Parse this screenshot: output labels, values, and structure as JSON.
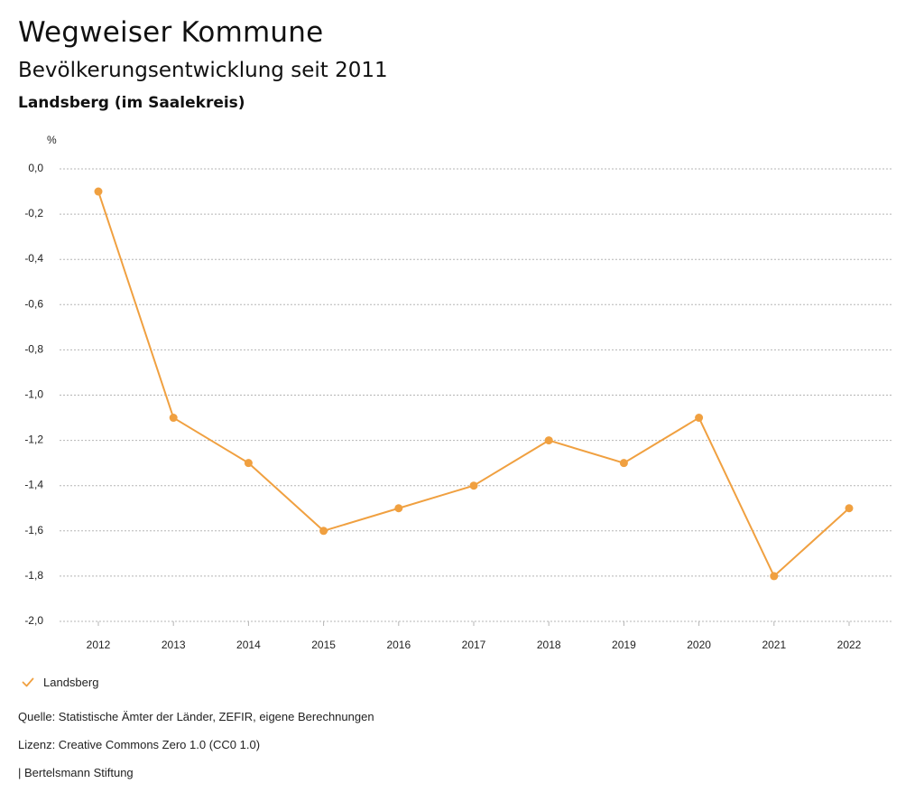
{
  "header": {
    "title": "Wegweiser Kommune",
    "subtitle": "Bevölkerungsentwicklung seit 2011",
    "region": "Landsberg (im Saalekreis)"
  },
  "chart_data": {
    "type": "line",
    "ylabel": "%",
    "xlabel": "",
    "ylim": [
      -2.0,
      0.0
    ],
    "y_ticks": [
      "0,0",
      "-0,2",
      "-0,4",
      "-0,6",
      "-0,8",
      "-1,0",
      "-1,2",
      "-1,4",
      "-1,6",
      "-1,8",
      "-2,0"
    ],
    "y_tick_values": [
      0.0,
      -0.2,
      -0.4,
      -0.6,
      -0.8,
      -1.0,
      -1.2,
      -1.4,
      -1.6,
      -1.8,
      -2.0
    ],
    "categories": [
      "2012",
      "2013",
      "2014",
      "2015",
      "2016",
      "2017",
      "2018",
      "2019",
      "2020",
      "2021",
      "2022"
    ],
    "series": [
      {
        "name": "Landsberg",
        "color": "#F0A040",
        "values": [
          -0.1,
          -1.1,
          -1.3,
          -1.6,
          -1.5,
          -1.4,
          -1.2,
          -1.3,
          -1.1,
          -1.8,
          -1.5
        ]
      }
    ],
    "grid": true,
    "legend_position": "bottom-left"
  },
  "legend": {
    "label": "Landsberg"
  },
  "footer": {
    "source": "Quelle: Statistische Ämter der Länder, ZEFIR, eigene Berechnungen",
    "license": "Lizenz: Creative Commons Zero 1.0 (CC0 1.0)",
    "publisher": "| Bertelsmann Stiftung"
  }
}
